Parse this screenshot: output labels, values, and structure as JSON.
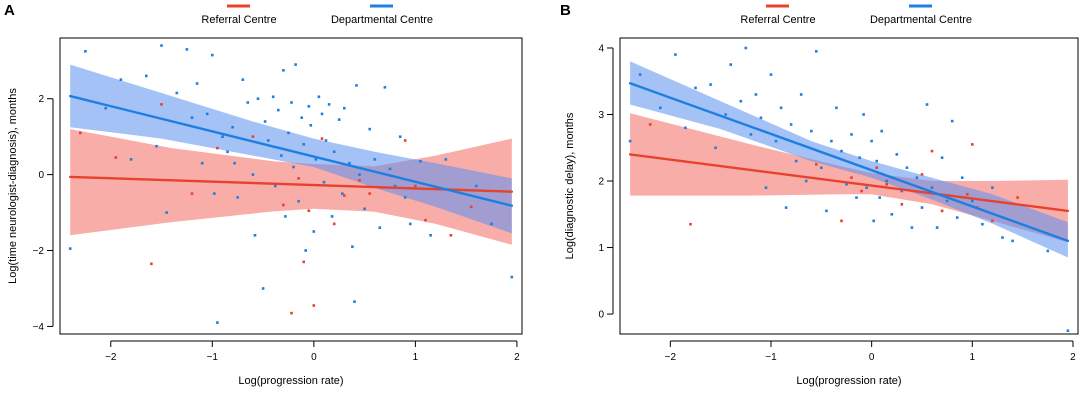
{
  "figure": {
    "colors": {
      "referral": "#e8412c",
      "departmental": "#1e7fe0",
      "referral_band": "#f47a72",
      "departmental_band": "#5b8ff0"
    },
    "legend": {
      "referral_label": "Referral Centre",
      "departmental_label": "Departmental Centre"
    }
  },
  "chart_data": [
    {
      "type": "scatter",
      "panel_label": "A",
      "title": "",
      "xlabel": "Log(progression rate)",
      "ylabel": "Log(time neurologist-diagnosis), months",
      "xlim": [
        -2.5,
        2.05
      ],
      "ylim": [
        -4.2,
        3.6
      ],
      "xticks": [
        -2,
        -1,
        0,
        1,
        2
      ],
      "xtick_labels": [
        "−2",
        "−1",
        "0",
        "1",
        "2"
      ],
      "yticks": [
        -4,
        -2,
        0,
        2
      ],
      "ytick_labels": [
        "−4",
        "−2",
        "0",
        "2"
      ],
      "legend": [
        "Referral Centre",
        "Departmental Centre"
      ],
      "series": [
        {
          "name": "Referral Centre",
          "color": "#e8412c",
          "fit": {
            "x": [
              -2.4,
              1.95
            ],
            "y": [
              -0.06,
              -0.45
            ]
          },
          "band": {
            "x": [
              -2.4,
              -1.4,
              -0.4,
              0.0,
              0.6,
              1.2,
              1.95
            ],
            "upper": [
              1.2,
              0.7,
              0.35,
              0.28,
              0.22,
              0.5,
              0.95
            ],
            "lower": [
              -1.6,
              -1.25,
              -0.97,
              -0.9,
              -0.98,
              -1.3,
              -1.85
            ]
          },
          "points": [
            [
              -2.3,
              1.1
            ],
            [
              -1.95,
              0.45
            ],
            [
              -1.6,
              -2.35
            ],
            [
              -1.5,
              1.85
            ],
            [
              -1.2,
              -0.5
            ],
            [
              -0.95,
              0.7
            ],
            [
              -0.6,
              1.0
            ],
            [
              -0.3,
              -0.8
            ],
            [
              -0.22,
              -3.65
            ],
            [
              -0.15,
              -0.1
            ],
            [
              -0.1,
              -2.3
            ],
            [
              -0.05,
              -0.95
            ],
            [
              0.0,
              -3.45
            ],
            [
              0.08,
              0.95
            ],
            [
              0.2,
              -1.3
            ],
            [
              0.3,
              -0.55
            ],
            [
              0.45,
              -0.15
            ],
            [
              0.55,
              -0.5
            ],
            [
              0.9,
              0.9
            ],
            [
              1.0,
              -0.3
            ],
            [
              1.1,
              -1.2
            ],
            [
              1.35,
              -1.6
            ],
            [
              1.55,
              -0.85
            ]
          ]
        },
        {
          "name": "Departmental Centre",
          "color": "#1e7fe0",
          "fit": {
            "x": [
              -2.4,
              1.95
            ],
            "y": [
              2.07,
              -0.82
            ]
          },
          "band": {
            "x": [
              -2.4,
              -1.5,
              -0.6,
              0.0,
              0.6,
              1.2,
              1.95
            ],
            "upper": [
              2.9,
              2.15,
              1.4,
              0.95,
              0.6,
              0.3,
              -0.1
            ],
            "lower": [
              1.25,
              0.95,
              0.5,
              0.2,
              -0.35,
              -0.85,
              -1.55
            ]
          },
          "points": [
            [
              -2.4,
              -1.95
            ],
            [
              -2.25,
              3.25
            ],
            [
              -2.05,
              1.75
            ],
            [
              -1.9,
              2.5
            ],
            [
              -1.8,
              0.4
            ],
            [
              -1.65,
              2.6
            ],
            [
              -1.55,
              0.75
            ],
            [
              -1.5,
              3.4
            ],
            [
              -1.45,
              -1.0
            ],
            [
              -1.35,
              2.15
            ],
            [
              -1.25,
              3.3
            ],
            [
              -1.2,
              1.5
            ],
            [
              -1.15,
              2.4
            ],
            [
              -1.1,
              0.3
            ],
            [
              -1.05,
              1.6
            ],
            [
              -1.0,
              3.15
            ],
            [
              -0.98,
              -0.5
            ],
            [
              -0.95,
              -3.9
            ],
            [
              -0.9,
              1.0
            ],
            [
              -0.85,
              0.6
            ],
            [
              -0.8,
              1.25
            ],
            [
              -0.78,
              0.3
            ],
            [
              -0.75,
              -0.6
            ],
            [
              -0.7,
              2.5
            ],
            [
              -0.65,
              1.9
            ],
            [
              -0.6,
              0.0
            ],
            [
              -0.58,
              -1.6
            ],
            [
              -0.55,
              2.0
            ],
            [
              -0.5,
              -3.0
            ],
            [
              -0.48,
              1.4
            ],
            [
              -0.45,
              0.9
            ],
            [
              -0.4,
              2.05
            ],
            [
              -0.38,
              -0.3
            ],
            [
              -0.35,
              1.7
            ],
            [
              -0.32,
              0.5
            ],
            [
              -0.3,
              2.75
            ],
            [
              -0.28,
              -1.1
            ],
            [
              -0.25,
              1.1
            ],
            [
              -0.22,
              1.9
            ],
            [
              -0.2,
              0.2
            ],
            [
              -0.18,
              2.9
            ],
            [
              -0.15,
              -0.7
            ],
            [
              -0.12,
              1.5
            ],
            [
              -0.1,
              0.8
            ],
            [
              -0.08,
              -2.0
            ],
            [
              -0.05,
              1.8
            ],
            [
              -0.03,
              1.3
            ],
            [
              0.0,
              -1.5
            ],
            [
              0.02,
              0.4
            ],
            [
              0.05,
              2.05
            ],
            [
              0.08,
              1.6
            ],
            [
              0.1,
              -0.2
            ],
            [
              0.12,
              0.9
            ],
            [
              0.15,
              1.85
            ],
            [
              0.18,
              -1.1
            ],
            [
              0.2,
              0.6
            ],
            [
              0.25,
              1.45
            ],
            [
              0.28,
              -0.5
            ],
            [
              0.3,
              1.75
            ],
            [
              0.35,
              0.3
            ],
            [
              0.38,
              -1.9
            ],
            [
              0.4,
              -3.35
            ],
            [
              0.42,
              2.35
            ],
            [
              0.45,
              0.0
            ],
            [
              0.5,
              -0.9
            ],
            [
              0.55,
              1.2
            ],
            [
              0.6,
              0.4
            ],
            [
              0.65,
              -1.4
            ],
            [
              0.7,
              2.3
            ],
            [
              0.75,
              0.15
            ],
            [
              0.8,
              -0.3
            ],
            [
              0.85,
              1.0
            ],
            [
              0.9,
              -0.6
            ],
            [
              0.95,
              -1.3
            ],
            [
              1.05,
              0.35
            ],
            [
              1.15,
              -1.6
            ],
            [
              1.3,
              0.4
            ],
            [
              1.6,
              -0.3
            ],
            [
              1.75,
              -1.3
            ],
            [
              1.95,
              -2.7
            ]
          ]
        }
      ]
    },
    {
      "type": "scatter",
      "panel_label": "B",
      "title": "",
      "xlabel": "Log(progression rate)",
      "ylabel": "Log(diagnostic delay), months",
      "xlim": [
        -2.5,
        2.05
      ],
      "ylim": [
        -0.3,
        4.15
      ],
      "xticks": [
        -2,
        -1,
        0,
        1,
        2
      ],
      "xtick_labels": [
        "−2",
        "−1",
        "0",
        "1",
        "2"
      ],
      "yticks": [
        0,
        1,
        2,
        3,
        4
      ],
      "ytick_labels": [
        "0",
        "1",
        "2",
        "3",
        "4"
      ],
      "legend": [
        "Referral Centre",
        "Departmental Centre"
      ],
      "series": [
        {
          "name": "Referral Centre",
          "color": "#e8412c",
          "fit": {
            "x": [
              -2.4,
              1.95
            ],
            "y": [
              2.4,
              1.55
            ]
          },
          "band": {
            "x": [
              -2.4,
              -1.2,
              -0.3,
              0.0,
              0.6,
              1.2,
              1.95
            ],
            "upper": [
              3.02,
              2.55,
              2.22,
              2.12,
              2.0,
              2.0,
              2.02
            ],
            "lower": [
              1.78,
              1.78,
              1.8,
              1.8,
              1.65,
              1.4,
              1.08
            ]
          },
          "points": [
            [
              -2.2,
              2.85
            ],
            [
              -1.8,
              1.35
            ],
            [
              -0.55,
              2.25
            ],
            [
              -0.3,
              1.4
            ],
            [
              -0.2,
              2.05
            ],
            [
              -0.1,
              1.85
            ],
            [
              0.05,
              2.2
            ],
            [
              0.15,
              1.95
            ],
            [
              0.3,
              1.65
            ],
            [
              0.5,
              2.1
            ],
            [
              0.6,
              2.45
            ],
            [
              0.7,
              1.55
            ],
            [
              0.95,
              1.8
            ],
            [
              1.0,
              2.55
            ],
            [
              1.05,
              1.6
            ],
            [
              1.2,
              1.4
            ],
            [
              1.45,
              1.75
            ]
          ]
        },
        {
          "name": "Departmental Centre",
          "color": "#1e7fe0",
          "fit": {
            "x": [
              -2.4,
              1.95
            ],
            "y": [
              3.47,
              1.1
            ]
          },
          "band": {
            "x": [
              -2.4,
              -1.5,
              -0.6,
              0.0,
              0.6,
              1.2,
              1.95
            ],
            "upper": [
              3.8,
              3.2,
              2.6,
              2.3,
              2.05,
              1.8,
              1.38
            ]
          },
          "band_lower": [
            3.15,
            2.78,
            2.3,
            2.05,
            1.72,
            1.36,
            0.85
          ],
          "points": [
            [
              -2.4,
              2.6
            ],
            [
              -2.3,
              3.6
            ],
            [
              -2.1,
              3.1
            ],
            [
              -1.95,
              3.9
            ],
            [
              -1.85,
              2.8
            ],
            [
              -1.75,
              3.4
            ],
            [
              -1.6,
              3.45
            ],
            [
              -1.55,
              2.5
            ],
            [
              -1.45,
              3.0
            ],
            [
              -1.4,
              3.75
            ],
            [
              -1.3,
              3.2
            ],
            [
              -1.25,
              4.0
            ],
            [
              -1.2,
              2.7
            ],
            [
              -1.15,
              3.3
            ],
            [
              -1.1,
              2.95
            ],
            [
              -1.05,
              1.9
            ],
            [
              -1.0,
              3.6
            ],
            [
              -0.95,
              2.6
            ],
            [
              -0.9,
              3.1
            ],
            [
              -0.85,
              1.6
            ],
            [
              -0.8,
              2.85
            ],
            [
              -0.75,
              2.3
            ],
            [
              -0.7,
              3.3
            ],
            [
              -0.65,
              2.0
            ],
            [
              -0.6,
              2.75
            ],
            [
              -0.55,
              3.95
            ],
            [
              -0.5,
              2.2
            ],
            [
              -0.45,
              1.55
            ],
            [
              -0.4,
              2.6
            ],
            [
              -0.35,
              3.1
            ],
            [
              -0.3,
              2.45
            ],
            [
              -0.25,
              1.95
            ],
            [
              -0.2,
              2.7
            ],
            [
              -0.15,
              1.75
            ],
            [
              -0.12,
              2.35
            ],
            [
              -0.08,
              3.0
            ],
            [
              -0.05,
              1.9
            ],
            [
              0.0,
              2.6
            ],
            [
              0.02,
              1.4
            ],
            [
              0.05,
              2.3
            ],
            [
              0.08,
              1.75
            ],
            [
              0.1,
              2.75
            ],
            [
              0.15,
              2.0
            ],
            [
              0.2,
              1.5
            ],
            [
              0.25,
              2.4
            ],
            [
              0.3,
              1.85
            ],
            [
              0.35,
              2.2
            ],
            [
              0.4,
              1.3
            ],
            [
              0.45,
              2.05
            ],
            [
              0.5,
              1.6
            ],
            [
              0.55,
              3.15
            ],
            [
              0.6,
              1.9
            ],
            [
              0.65,
              1.3
            ],
            [
              0.7,
              2.35
            ],
            [
              0.75,
              1.7
            ],
            [
              0.8,
              2.9
            ],
            [
              0.85,
              1.45
            ],
            [
              0.9,
              2.05
            ],
            [
              1.0,
              1.7
            ],
            [
              1.1,
              1.35
            ],
            [
              1.2,
              1.9
            ],
            [
              1.3,
              1.15
            ],
            [
              1.4,
              1.1
            ],
            [
              1.75,
              0.95
            ],
            [
              1.95,
              -0.25
            ]
          ]
        }
      ]
    }
  ]
}
